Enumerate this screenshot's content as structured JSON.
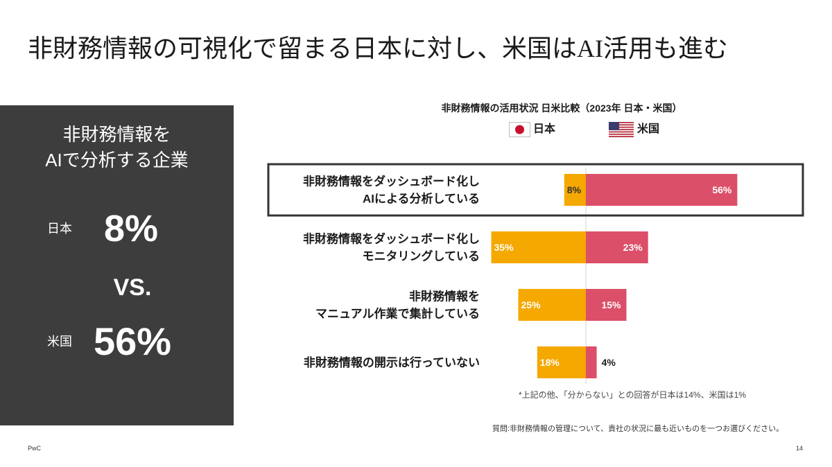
{
  "slide": {
    "title": "非財務情報の可視化で留まる日本に対し、米国はAI活用も進む",
    "footer_brand": "PwC",
    "page_number": "14"
  },
  "summary_panel": {
    "heading_line1": "非財務情報を",
    "heading_line2": "AIで分析する企業",
    "japan_label": "日本",
    "japan_value": "8%",
    "vs_text": "VS.",
    "us_label": "米国",
    "us_value": "56%"
  },
  "chart_data": {
    "type": "bar",
    "orientation": "horizontal-diverging",
    "title": "非財務情報の活用状況 日米比較（2023年 日本・米国）",
    "categories": [
      [
        "非財務情報をダッシュボード化し",
        "AIによる分析している"
      ],
      [
        "非財務情報をダッシュボード化し",
        "モニタリングしている"
      ],
      [
        "非財務情報を",
        "マニュアル作業で集計している"
      ],
      [
        "非財務情報の開示は行っていない"
      ]
    ],
    "series": [
      {
        "name": "日本",
        "values": [
          8,
          35,
          25,
          18
        ],
        "color": "#F5A800",
        "icon": "japan-flag-icon",
        "side": "left"
      },
      {
        "name": "米国",
        "values": [
          56,
          23,
          15,
          4
        ],
        "color": "#DB4F68",
        "icon": "us-flag-icon",
        "side": "right"
      }
    ],
    "value_suffix": "%",
    "highlighted_category_index": 0,
    "legend_position": "top-center",
    "grid": false
  },
  "notes": {
    "footnote": "*上記の他、「分からない」との回答が日本は14%、米国は1%",
    "question": "質問:非財務情報の管理について、貴社の状況に最も近いものを一つお選びください。"
  },
  "colors": {
    "panel_background": "#3D3D3D",
    "japan": "#F5A800",
    "us": "#DB4F68",
    "highlight_border": "#333333"
  }
}
